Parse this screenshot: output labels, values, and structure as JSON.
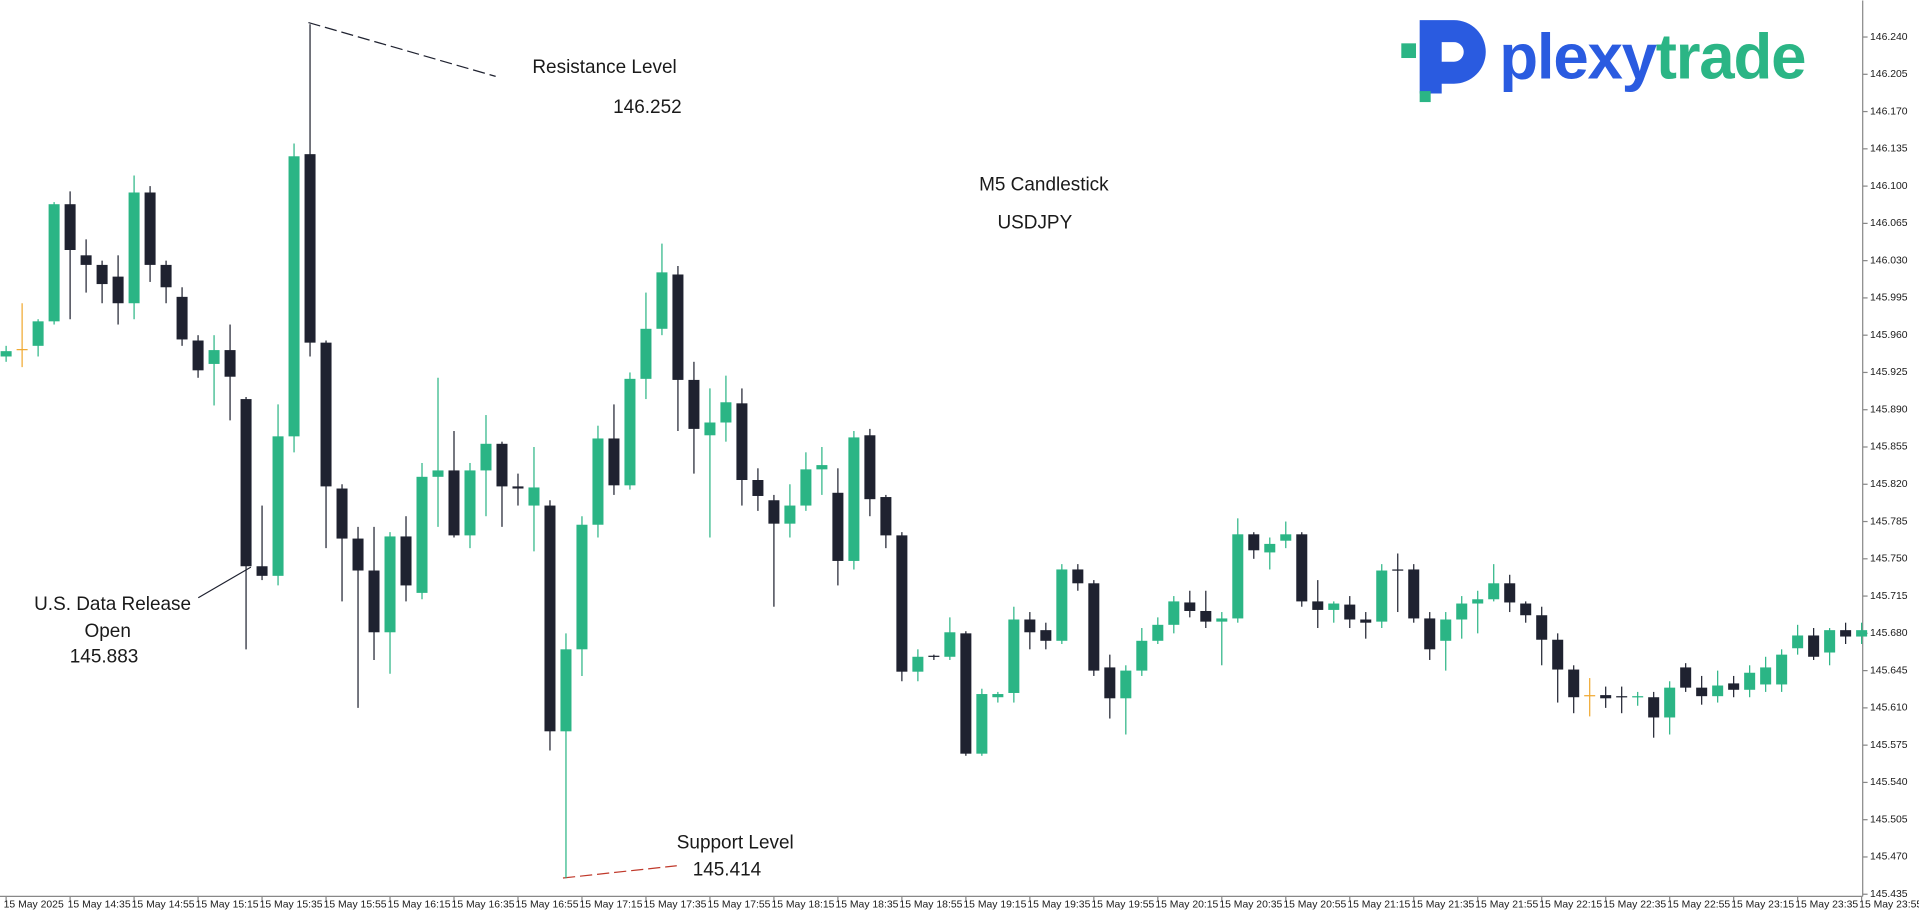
{
  "logo": [
    "plexy",
    "trade"
  ],
  "chart_data": {
    "type": "candlestick",
    "title": "M5 Candlestick",
    "subtitle": "USDJPY",
    "annotations": [
      "Resistance Level",
      "146.252",
      "U.S. Data Release",
      "Open",
      "145.883",
      "Support Level",
      "145.414"
    ],
    "up_color": "#2bb585",
    "down_color": "#1f2230",
    "doji_color": "#f0a830",
    "categories": [
      "15 May 2025",
      null,
      null,
      null,
      "15 May 14:35",
      null,
      null,
      null,
      "15 May 14:55",
      null,
      null,
      null,
      "15 May 15:15",
      null,
      null,
      null,
      "15 May 15:35",
      null,
      null,
      null,
      "15 May 15:55",
      null,
      null,
      null,
      "15 May 16:15",
      null,
      null,
      null,
      "15 May 16:35",
      null,
      null,
      null,
      "15 May 16:55",
      null,
      null,
      null,
      "15 May 17:15",
      null,
      null,
      null,
      "15 May 17:35",
      null,
      null,
      null,
      "15 May 17:55",
      null,
      null,
      null,
      "15 May 18:15",
      null,
      null,
      null,
      "15 May 18:35",
      null,
      null,
      null,
      "15 May 18:55",
      null,
      null,
      null,
      "15 May 19:15",
      null,
      null,
      null,
      "15 May 19:35",
      null,
      null,
      null,
      "15 May 19:55",
      null,
      null,
      null,
      "15 May 20:15",
      null,
      null,
      null,
      "15 May 20:35",
      null,
      null,
      null,
      "15 May 20:55",
      null,
      null,
      null,
      "15 May 21:15",
      null,
      null,
      null,
      "15 May 21:35",
      null,
      null,
      null,
      "15 May 21:55",
      null,
      null,
      null,
      "15 May 22:15",
      null,
      null,
      null,
      "15 May 22:35",
      null,
      null,
      null,
      "15 May 22:55",
      null,
      null,
      null,
      "15 May 23:15",
      null,
      null,
      null,
      "15 May 23:35",
      null,
      null,
      null,
      "15 May 23:55"
    ],
    "open": [
      145.94,
      145.947,
      145.95,
      145.973,
      146.083,
      146.035,
      146.026,
      146.015,
      145.99,
      146.094,
      146.026,
      145.996,
      145.955,
      145.933,
      145.946,
      145.9,
      145.743,
      145.734,
      145.865,
      146.13,
      145.953,
      145.816,
      145.769,
      145.739,
      145.681,
      145.771,
      145.718,
      145.827,
      145.833,
      145.772,
      145.833,
      145.858,
      145.818,
      145.8,
      145.8,
      145.588,
      145.665,
      145.782,
      145.863,
      145.819,
      145.919,
      145.966,
      146.017,
      145.918,
      145.866,
      145.878,
      145.896,
      145.824,
      145.805,
      145.783,
      145.8,
      145.834,
      145.812,
      145.748,
      145.866,
      145.808,
      145.772,
      145.644,
      145.659,
      145.658,
      145.68,
      145.567,
      145.62,
      145.624,
      145.693,
      145.683,
      145.673,
      145.74,
      145.727,
      145.648,
      145.619,
      145.645,
      145.673,
      145.688,
      145.709,
      145.701,
      145.691,
      145.694,
      145.773,
      145.756,
      145.767,
      145.773,
      145.71,
      145.702,
      145.707,
      145.693,
      145.691,
      145.74,
      145.74,
      145.694,
      145.673,
      145.693,
      145.708,
      145.712,
      145.727,
      145.708,
      145.697,
      145.674,
      145.646,
      145.622,
      145.622,
      145.621,
      145.62,
      145.62,
      145.601,
      145.648,
      145.629,
      145.621,
      145.633,
      145.627,
      145.632,
      145.632,
      145.666,
      145.678,
      145.662,
      145.683,
      145.677
    ],
    "high": [
      145.95,
      145.99,
      145.975,
      146.085,
      146.095,
      146.05,
      146.03,
      146.035,
      146.11,
      146.1,
      146.03,
      146.005,
      145.96,
      145.96,
      145.97,
      145.902,
      145.8,
      145.895,
      146.14,
      146.252,
      145.955,
      145.82,
      145.78,
      145.78,
      145.775,
      145.79,
      145.84,
      145.92,
      145.87,
      145.84,
      145.885,
      145.86,
      145.83,
      145.855,
      145.805,
      145.68,
      145.79,
      145.875,
      145.895,
      145.925,
      146.0,
      146.046,
      146.025,
      145.935,
      145.91,
      145.922,
      145.91,
      145.835,
      145.81,
      145.82,
      145.85,
      145.855,
      145.835,
      145.87,
      145.872,
      145.81,
      145.775,
      145.665,
      145.66,
      145.695,
      145.682,
      145.628,
      145.625,
      145.705,
      145.7,
      145.69,
      145.745,
      145.745,
      145.73,
      145.66,
      145.65,
      145.685,
      145.695,
      145.715,
      145.72,
      145.72,
      145.7,
      145.788,
      145.775,
      145.77,
      145.785,
      145.775,
      145.73,
      145.71,
      145.715,
      145.7,
      145.745,
      145.755,
      145.745,
      145.7,
      145.7,
      145.715,
      145.72,
      145.745,
      145.735,
      145.71,
      145.705,
      145.68,
      145.65,
      145.638,
      145.63,
      145.63,
      145.625,
      145.625,
      145.635,
      145.652,
      145.64,
      145.645,
      145.64,
      145.65,
      145.658,
      145.665,
      145.688,
      145.685,
      145.685,
      145.69,
      145.69
    ],
    "low": [
      145.935,
      145.93,
      145.94,
      145.97,
      145.975,
      146.0,
      145.99,
      145.97,
      145.975,
      146.01,
      145.99,
      145.95,
      145.92,
      145.894,
      145.88,
      145.665,
      145.73,
      145.725,
      145.85,
      145.94,
      145.76,
      145.71,
      145.61,
      145.655,
      145.642,
      145.71,
      145.712,
      145.78,
      145.77,
      145.76,
      145.79,
      145.78,
      145.8,
      145.757,
      145.57,
      145.45,
      145.64,
      145.77,
      145.81,
      145.815,
      145.9,
      145.96,
      145.87,
      145.83,
      145.77,
      145.86,
      145.8,
      145.795,
      145.705,
      145.77,
      145.795,
      145.81,
      145.725,
      145.74,
      145.79,
      145.76,
      145.635,
      145.635,
      145.655,
      145.655,
      145.565,
      145.565,
      145.615,
      145.615,
      145.665,
      145.665,
      145.67,
      145.72,
      145.64,
      145.6,
      145.585,
      145.64,
      145.67,
      145.68,
      145.695,
      145.685,
      145.65,
      145.69,
      145.75,
      145.74,
      145.76,
      145.705,
      145.685,
      145.69,
      145.685,
      145.675,
      145.685,
      145.7,
      145.69,
      145.655,
      145.645,
      145.675,
      145.68,
      145.71,
      145.7,
      145.69,
      145.65,
      145.615,
      145.605,
      145.602,
      145.61,
      145.605,
      145.612,
      145.582,
      145.585,
      145.625,
      145.613,
      145.615,
      145.62,
      145.62,
      145.625,
      145.625,
      145.66,
      145.655,
      145.65,
      145.67,
      145.67
    ],
    "close": [
      145.945,
      145.947,
      145.973,
      146.083,
      146.04,
      146.026,
      146.008,
      145.99,
      146.094,
      146.026,
      146.005,
      145.956,
      145.927,
      145.946,
      145.921,
      145.743,
      145.734,
      145.865,
      146.128,
      145.953,
      145.818,
      145.769,
      145.739,
      145.681,
      145.771,
      145.725,
      145.827,
      145.833,
      145.772,
      145.833,
      145.858,
      145.818,
      145.816,
      145.817,
      145.588,
      145.665,
      145.782,
      145.863,
      145.819,
      145.919,
      145.966,
      146.019,
      145.918,
      145.872,
      145.878,
      145.897,
      145.824,
      145.809,
      145.783,
      145.8,
      145.834,
      145.838,
      145.748,
      145.864,
      145.806,
      145.772,
      145.644,
      145.658,
      145.658,
      145.681,
      145.567,
      145.623,
      145.623,
      145.693,
      145.681,
      145.673,
      145.74,
      145.727,
      145.645,
      145.619,
      145.645,
      145.673,
      145.688,
      145.71,
      145.701,
      145.691,
      145.694,
      145.773,
      145.758,
      145.764,
      145.773,
      145.71,
      145.702,
      145.708,
      145.693,
      145.69,
      145.739,
      145.739,
      145.694,
      145.665,
      145.693,
      145.708,
      145.712,
      145.727,
      145.709,
      145.697,
      145.674,
      145.646,
      145.62,
      145.622,
      145.619,
      145.62,
      145.621,
      145.601,
      145.629,
      145.629,
      145.621,
      145.631,
      145.627,
      145.643,
      145.648,
      145.66,
      145.678,
      145.658,
      145.683,
      145.677,
      145.683
    ],
    "ylim": [
      145.433,
      146.272
    ],
    "yticks": [
      {
        "value": 146.24,
        "label": "146.240"
      },
      146.205,
      {
        "value": 146.17,
        "label": "146.170"
      },
      146.135,
      {
        "value": 146.1,
        "label": "146.100"
      },
      146.065,
      {
        "value": 146.03,
        "label": "146.030"
      },
      145.995,
      {
        "value": 145.96,
        "label": "145.960"
      },
      145.925,
      {
        "value": 145.89,
        "label": "145.890"
      },
      145.855,
      {
        "value": 145.82,
        "label": "145.820"
      },
      145.785,
      {
        "value": 145.75,
        "label": "145.750"
      },
      145.715,
      {
        "value": 145.68,
        "label": "145.680"
      },
      145.645,
      {
        "value": 145.61,
        "label": "145.610"
      },
      145.575,
      {
        "value": 145.54,
        "label": "145.540"
      },
      145.505,
      {
        "value": 145.47,
        "label": "145.470"
      },
      145.435
    ]
  }
}
